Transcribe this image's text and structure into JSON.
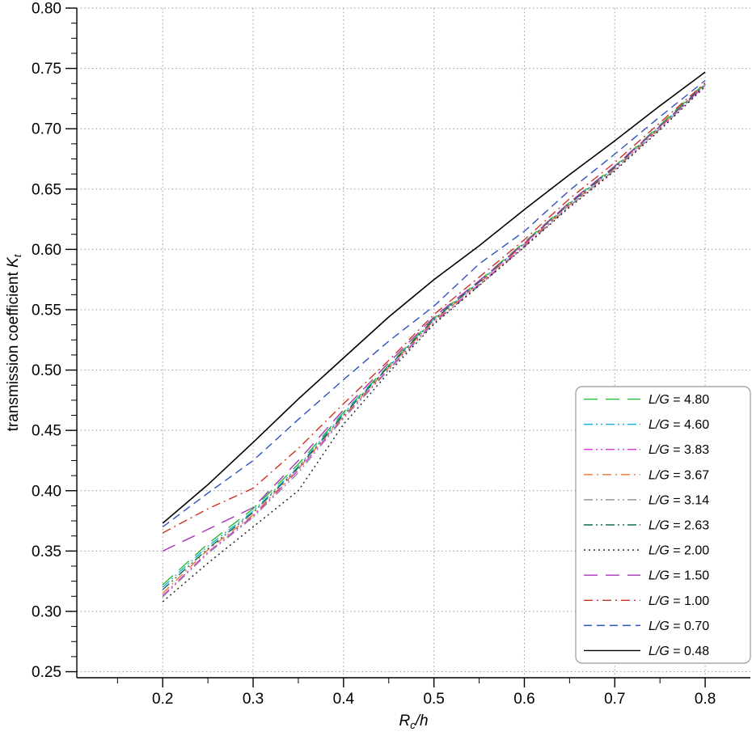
{
  "chart_data": {
    "type": "line",
    "title": "",
    "xlabel": "Rc/h",
    "ylabel": "transmission coefficient Kt",
    "xlabel_parts": {
      "symbol": "R",
      "subscript": "c",
      "rest": "/h"
    },
    "ylabel_parts": {
      "text": "transmission coefficient ",
      "symbol": "K",
      "subscript": "t"
    },
    "xlim": [
      0.105,
      0.85
    ],
    "ylim": [
      0.245,
      0.8
    ],
    "xticks": [
      0.2,
      0.3,
      0.4,
      0.5,
      0.6,
      0.7,
      0.8
    ],
    "xtick_labels": [
      "0.2",
      "0.3",
      "0.4",
      "0.5",
      "0.6",
      "0.7",
      "0.8"
    ],
    "yticks": [
      0.25,
      0.3,
      0.35,
      0.4,
      0.45,
      0.5,
      0.55,
      0.6,
      0.65,
      0.7,
      0.75,
      0.8
    ],
    "ytick_labels": [
      "0.25",
      "0.30",
      "0.35",
      "0.40",
      "0.45",
      "0.50",
      "0.55",
      "0.60",
      "0.65",
      "0.70",
      "0.75",
      "0.80"
    ],
    "grid": true,
    "grid_color": "#9a9a9a",
    "axis_color": "#000000",
    "legend_position": "bottom-right",
    "legend_var": "L/G",
    "x": [
      0.2,
      0.25,
      0.3,
      0.35,
      0.4,
      0.45,
      0.5,
      0.55,
      0.6,
      0.65,
      0.7,
      0.75,
      0.8
    ],
    "series": [
      {
        "label": "L/G = 4.80",
        "value": "4.80",
        "color": "#2db92d",
        "dash": "longdash",
        "values": [
          0.322,
          0.356,
          0.385,
          0.422,
          0.465,
          0.504,
          0.543,
          0.574,
          0.606,
          0.639,
          0.669,
          0.703,
          0.738
        ]
      },
      {
        "label": "L/G = 4.60",
        "value": "4.60",
        "color": "#18b6d6",
        "dash": "dashdotdot",
        "values": [
          0.32,
          0.354,
          0.383,
          0.42,
          0.464,
          0.503,
          0.542,
          0.573,
          0.605,
          0.638,
          0.668,
          0.702,
          0.737
        ]
      },
      {
        "label": "L/G = 3.83",
        "value": "3.83",
        "color": "#e030e0",
        "dash": "dashdotdot",
        "values": [
          0.313,
          0.349,
          0.379,
          0.417,
          0.461,
          0.501,
          0.54,
          0.571,
          0.603,
          0.636,
          0.666,
          0.7,
          0.736
        ]
      },
      {
        "label": "L/G = 3.67",
        "value": "3.67",
        "color": "#ee7733",
        "dash": "dashdot",
        "values": [
          0.315,
          0.351,
          0.38,
          0.418,
          0.462,
          0.502,
          0.541,
          0.572,
          0.604,
          0.637,
          0.667,
          0.701,
          0.737
        ]
      },
      {
        "label": "L/G = 3.14",
        "value": "3.14",
        "color": "#8a8a9a",
        "dash": "dashdotdot",
        "values": [
          0.312,
          0.348,
          0.378,
          0.415,
          0.46,
          0.5,
          0.539,
          0.57,
          0.602,
          0.636,
          0.666,
          0.7,
          0.736
        ]
      },
      {
        "label": "L/G = 2.63",
        "value": "2.63",
        "color": "#0f6b57",
        "dash": "dashdotdot",
        "values": [
          0.318,
          0.352,
          0.382,
          0.419,
          0.463,
          0.503,
          0.542,
          0.573,
          0.605,
          0.638,
          0.668,
          0.702,
          0.737
        ]
      },
      {
        "label": "L/G = 2.00",
        "value": "2.00",
        "color": "#1a1a1a",
        "dash": "dot",
        "values": [
          0.308,
          0.34,
          0.37,
          0.4,
          0.455,
          0.498,
          0.538,
          0.57,
          0.602,
          0.635,
          0.665,
          0.699,
          0.735
        ]
      },
      {
        "label": "L/G = 1.50",
        "value": "1.50",
        "color": "#aa33bb",
        "dash": "longdash",
        "values": [
          0.35,
          0.368,
          0.386,
          0.425,
          0.467,
          0.506,
          0.544,
          0.574,
          0.605,
          0.639,
          0.669,
          0.702,
          0.736
        ]
      },
      {
        "label": "L/G = 1.00",
        "value": "1.00",
        "color": "#cc3124",
        "dash": "dashdot",
        "values": [
          0.365,
          0.385,
          0.402,
          0.435,
          0.472,
          0.508,
          0.546,
          0.577,
          0.608,
          0.642,
          0.672,
          0.705,
          0.738
        ]
      },
      {
        "label": "L/G = 0.70",
        "value": "0.70",
        "color": "#3050c0",
        "dash": "dash",
        "values": [
          0.37,
          0.398,
          0.425,
          0.459,
          0.492,
          0.524,
          0.553,
          0.588,
          0.615,
          0.649,
          0.679,
          0.71,
          0.74
        ]
      },
      {
        "label": "L/G = 0.48",
        "value": "0.48",
        "color": "#000000",
        "dash": "solid",
        "values": [
          0.373,
          0.405,
          0.44,
          0.476,
          0.51,
          0.544,
          0.575,
          0.603,
          0.633,
          0.662,
          0.69,
          0.719,
          0.747
        ]
      }
    ]
  }
}
